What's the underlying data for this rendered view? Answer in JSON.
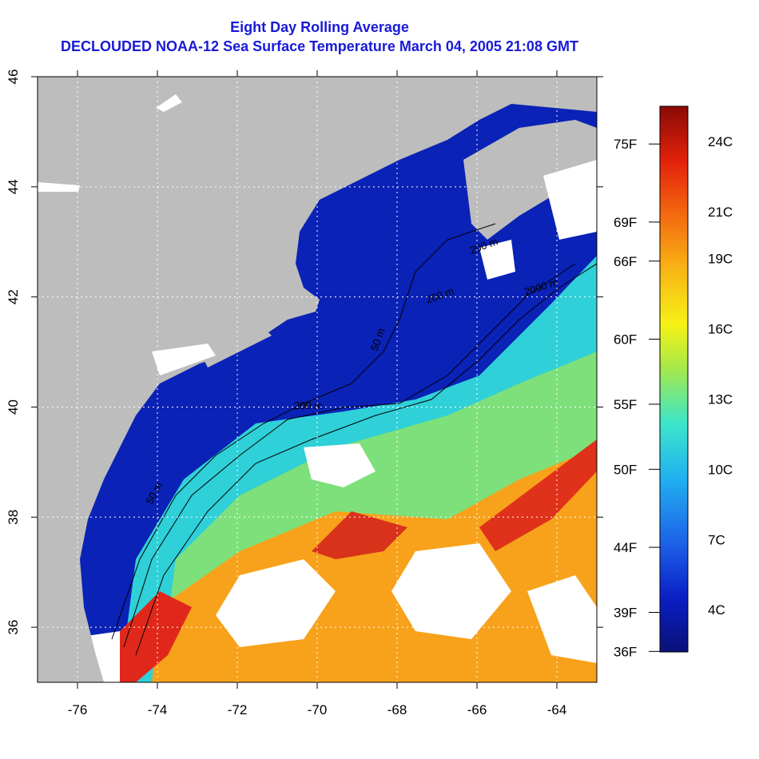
{
  "title": "Eight Day Rolling Average",
  "subtitle": "DECLOUDED NOAA-12 Sea Surface Temperature March 04, 2005 21:08 GMT",
  "map": {
    "lon_range": [
      -77,
      -63
    ],
    "lat_range": [
      35,
      46
    ],
    "x_ticks": [
      "-76",
      "-74",
      "-72",
      "-70",
      "-68",
      "-66",
      "-64"
    ],
    "y_ticks": [
      "36",
      "38",
      "40",
      "42",
      "44",
      "46"
    ],
    "grid": "dotted",
    "contour_labels": [
      "50 m",
      "200 m",
      "2000 m",
      "200 m",
      "50 m",
      "200 m"
    ],
    "colors": {
      "land": "#bdbdbd",
      "cloud": "#ffffff",
      "water_cold": "#0a1fb8",
      "water_warm": "#e0281a"
    }
  },
  "colorbar": {
    "celsius_labels": [
      "24C",
      "21C",
      "19C",
      "16C",
      "13C",
      "10C",
      "7C",
      "4C"
    ],
    "fahrenheit_labels": [
      "75F",
      "69F",
      "66F",
      "60F",
      "55F",
      "50F",
      "44F",
      "39F",
      "36F"
    ],
    "stops": [
      "#0b1177",
      "#0a1fc6",
      "#1d62e8",
      "#21b2f0",
      "#3de6c9",
      "#a6e84a",
      "#f6f216",
      "#f8b514",
      "#f46a10",
      "#e3210b",
      "#8a0a06"
    ]
  }
}
